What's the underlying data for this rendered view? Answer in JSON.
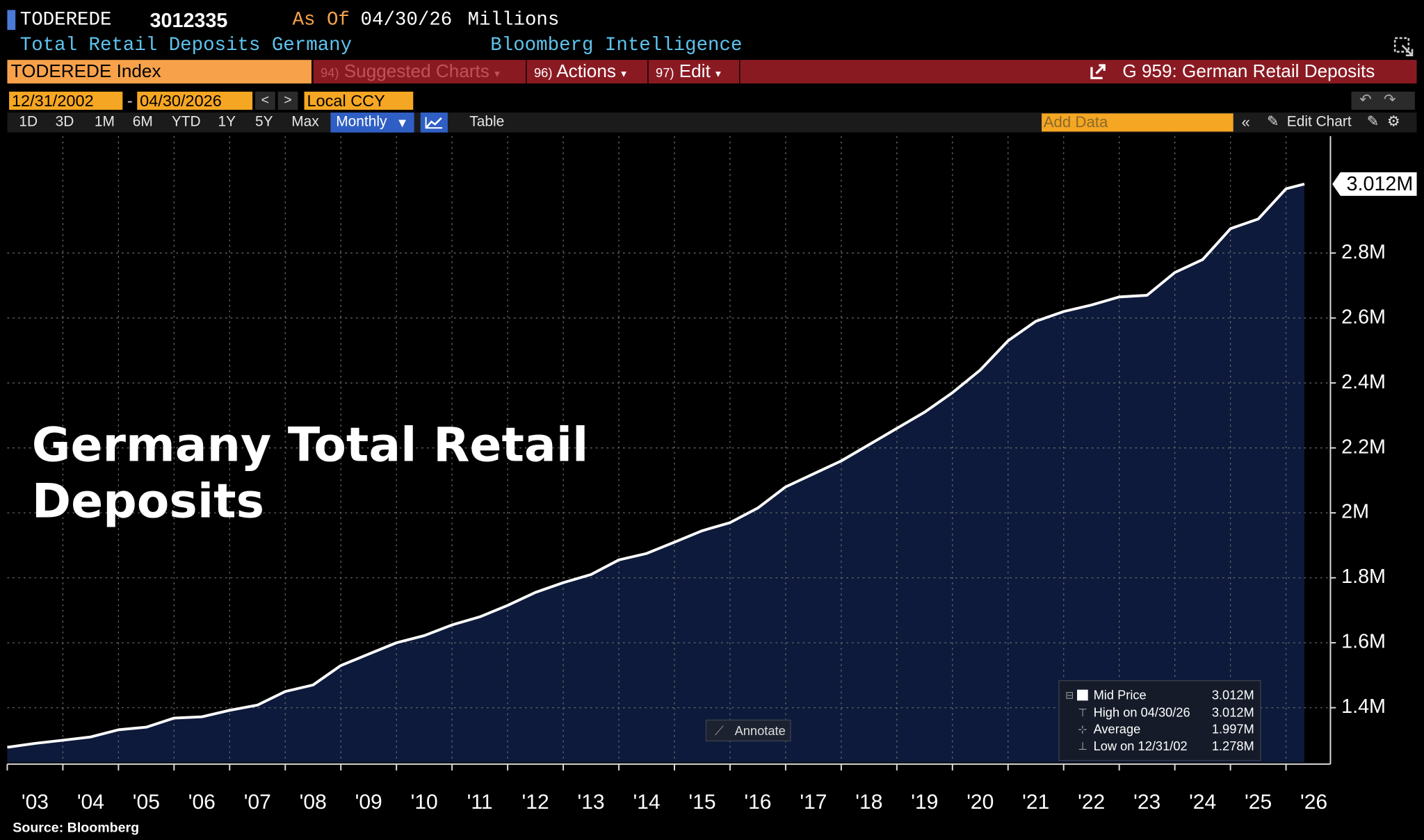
{
  "header": {
    "ticker": "TODEREDE",
    "value": "3012335",
    "as_of_label": "As Of",
    "as_of_date": "04/30/26",
    "units": "Millions",
    "description": "Total Retail Deposits Germany",
    "provider": "Bloomberg Intelligence"
  },
  "toolbar": {
    "security": "TODEREDE Index",
    "menu": [
      {
        "code": "94)",
        "label": "Suggested Charts"
      },
      {
        "code": "96)",
        "label": "Actions"
      },
      {
        "code": "97)",
        "label": "Edit"
      }
    ],
    "chart_link": "G 959: German Retail Deposits"
  },
  "controls": {
    "start_date": "12/31/2002",
    "end_date": "04/30/2026",
    "currency": "Local CCY",
    "periods": [
      "1D",
      "3D",
      "1M",
      "6M",
      "YTD",
      "1Y",
      "5Y",
      "Max"
    ],
    "frequency": "Monthly",
    "table": "Table",
    "add_data": "Add Data",
    "edit_chart": "Edit Chart"
  },
  "chart_data": {
    "type": "area",
    "title": "Germany Total Retail Deposits",
    "source": "Source: Bloomberg",
    "annotate": "Annotate",
    "x": [
      2003.0,
      2003.5,
      2004.0,
      2004.5,
      2005.0,
      2005.5,
      2006.0,
      2006.5,
      2007.0,
      2007.5,
      2008.0,
      2008.5,
      2009.0,
      2009.5,
      2010.0,
      2010.5,
      2011.0,
      2011.5,
      2012.0,
      2012.5,
      2013.0,
      2013.5,
      2014.0,
      2014.5,
      2015.0,
      2015.5,
      2016.0,
      2016.5,
      2017.0,
      2017.5,
      2018.0,
      2018.5,
      2019.0,
      2019.5,
      2020.0,
      2020.5,
      2021.0,
      2021.5,
      2022.0,
      2022.5,
      2023.0,
      2023.5,
      2024.0,
      2024.5,
      2025.0,
      2025.5,
      2026.0,
      2026.33
    ],
    "series": [
      {
        "name": "Mid Price",
        "color": "#ffffff",
        "fill": "#0d1a3b",
        "values": [
          1278000,
          1290000,
          1300000,
          1310000,
          1332000,
          1340000,
          1368000,
          1372000,
          1392000,
          1408000,
          1450000,
          1470000,
          1530000,
          1565000,
          1600000,
          1622000,
          1655000,
          1680000,
          1715000,
          1755000,
          1785000,
          1810000,
          1855000,
          1875000,
          1910000,
          1945000,
          1970000,
          2015000,
          2080000,
          2120000,
          2160000,
          2210000,
          2260000,
          2310000,
          2370000,
          2440000,
          2530000,
          2590000,
          2620000,
          2640000,
          2665000,
          2670000,
          2740000,
          2780000,
          2875000,
          2905000,
          2998000,
          3012335
        ],
        "value_labels": [
          null,
          null,
          null,
          null,
          null,
          null,
          null,
          null,
          null,
          null,
          null,
          null,
          null,
          null,
          null,
          null,
          null,
          null,
          null,
          null,
          null,
          null,
          null,
          null,
          null,
          null,
          null,
          null,
          null,
          null,
          null,
          null,
          null,
          null,
          null,
          null,
          null,
          null,
          null,
          null,
          null,
          null,
          null,
          null,
          null,
          null,
          null,
          "3.012M"
        ]
      }
    ],
    "legend_stats": [
      {
        "name": "High on 04/30/26",
        "value": "3.012M"
      },
      {
        "name": "Average",
        "value": "1.997M"
      },
      {
        "name": "Low on 12/31/02",
        "value": "1.278M"
      }
    ],
    "legend_current": "3.012M",
    "xlim": [
      2003,
      2026.75
    ],
    "xticks": [
      {
        "value": 2003,
        "label": "'03"
      },
      {
        "value": 2004,
        "label": "'04"
      },
      {
        "value": 2005,
        "label": "'05"
      },
      {
        "value": 2006,
        "label": "'06"
      },
      {
        "value": 2007,
        "label": "'07"
      },
      {
        "value": 2008,
        "label": "'08"
      },
      {
        "value": 2009,
        "label": "'09"
      },
      {
        "value": 2010,
        "label": "'10"
      },
      {
        "value": 2011,
        "label": "'11"
      },
      {
        "value": 2012,
        "label": "'12"
      },
      {
        "value": 2013,
        "label": "'13"
      },
      {
        "value": 2014,
        "label": "'14"
      },
      {
        "value": 2015,
        "label": "'15"
      },
      {
        "value": 2016,
        "label": "'16"
      },
      {
        "value": 2017,
        "label": "'17"
      },
      {
        "value": 2018,
        "label": "'18"
      },
      {
        "value": 2019,
        "label": "'19"
      },
      {
        "value": 2020,
        "label": "'20"
      },
      {
        "value": 2021,
        "label": "'21"
      },
      {
        "value": 2022,
        "label": "'22"
      },
      {
        "value": 2023,
        "label": "'23"
      },
      {
        "value": 2024,
        "label": "'24"
      },
      {
        "value": 2025,
        "label": "'25"
      },
      {
        "value": 2026,
        "label": "'26"
      }
    ],
    "ylim": [
      1232000,
      3160000
    ],
    "yticks": [
      {
        "value": 1400000,
        "label": "1.4M"
      },
      {
        "value": 1600000,
        "label": "1.6M"
      },
      {
        "value": 1800000,
        "label": "1.8M"
      },
      {
        "value": 2000000,
        "label": "2M"
      },
      {
        "value": 2200000,
        "label": "2.2M"
      },
      {
        "value": 2400000,
        "label": "2.4M"
      },
      {
        "value": 2600000,
        "label": "2.6M"
      },
      {
        "value": 2800000,
        "label": "2.8M"
      }
    ],
    "grid": true
  }
}
